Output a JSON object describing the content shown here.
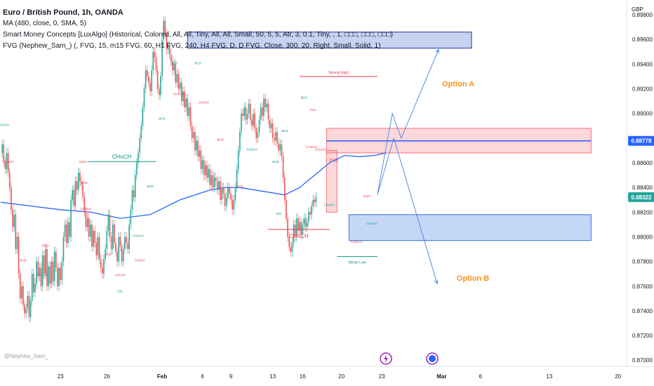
{
  "header": {
    "title": "Euro / British Pound, 1h, OANDA",
    "indicators": [
      "MA (480, close, 0, SMA, 5)",
      "Smart Money Concepts [LuxAlgo] (Historical, Colored, All, All, Tiny, All, All, Small, 50, 5, 5, Atr, 3, 0.1, Tiny, , 1, □□□, □□□, □□□)",
      "FVG (Nephew_Sam_) (, FVG, 15, m15 FVG, 60, H1 FVG, 240, H4 FVG, D, D FVG, Close, 300, 20, Right, Small, Solid, 1)"
    ]
  },
  "watermark": "@Nephew_Sam_",
  "chart_data": {
    "type": "line",
    "currency": "GBP",
    "ylim": [
      0.8695,
      0.8992
    ],
    "y_ticks": [
      0.87,
      0.872,
      0.874,
      0.876,
      0.878,
      0.88,
      0.882,
      0.884,
      0.886,
      0.888,
      0.89,
      0.892,
      0.894,
      0.896,
      0.898
    ],
    "y_tick_labels": [
      "0.87000",
      "0.87200",
      "0.87400",
      "0.87600",
      "0.87800",
      "0.88000",
      "0.88200",
      "0.88400",
      "0.88600",
      "0.88800",
      "0.89000",
      "0.89200",
      "0.89400",
      "0.89600",
      "0.89800"
    ],
    "x_tick_labels": [
      "23",
      "26",
      "Feb",
      "6",
      "9",
      "13",
      "16",
      "20",
      "23",
      "Mar",
      "6",
      "13",
      "20"
    ],
    "x_tick_index": [
      40,
      71,
      108,
      135,
      154,
      182,
      202,
      228,
      255,
      295,
      321,
      367,
      413
    ],
    "price_labels": [
      {
        "value": 0.88778,
        "label": "0.88778",
        "color": "#2962ff"
      },
      {
        "value": 0.88322,
        "label": "0.88322",
        "color": "#26a69a"
      }
    ],
    "series": [
      {
        "kind": "price",
        "description_key": "close",
        "x_start_index": 0,
        "values": [
          0.8868,
          0.8875,
          0.8861,
          0.8855,
          0.8868,
          0.8852,
          0.884,
          0.8822,
          0.8808,
          0.8818,
          0.879,
          0.88,
          0.877,
          0.875,
          0.876,
          0.8745,
          0.8738,
          0.8742,
          0.8752,
          0.8735,
          0.8748,
          0.877,
          0.8755,
          0.8762,
          0.878,
          0.8768,
          0.8775,
          0.876,
          0.8785,
          0.877,
          0.879,
          0.876,
          0.8776,
          0.8762,
          0.878,
          0.8764,
          0.8788,
          0.8775,
          0.876,
          0.8775,
          0.8765,
          0.878,
          0.88,
          0.881,
          0.8795,
          0.8812,
          0.88,
          0.883,
          0.8838,
          0.8825,
          0.8845,
          0.8838,
          0.8852,
          0.8845,
          0.8842,
          0.8832,
          0.882,
          0.8808,
          0.8815,
          0.88,
          0.881,
          0.8792,
          0.8805,
          0.8795,
          0.8785,
          0.88,
          0.8782,
          0.8775,
          0.877,
          0.8782,
          0.879,
          0.8805,
          0.8818,
          0.88,
          0.879,
          0.881,
          0.8795,
          0.8788,
          0.878,
          0.88,
          0.8792,
          0.878,
          0.879,
          0.88,
          0.8795,
          0.879,
          0.881,
          0.8822,
          0.8838,
          0.8832,
          0.885,
          0.886,
          0.8868,
          0.888,
          0.889,
          0.8905,
          0.892,
          0.8935,
          0.893,
          0.8925,
          0.8918,
          0.8935,
          0.895,
          0.8945,
          0.8935,
          0.892,
          0.8915,
          0.893,
          0.896,
          0.8975,
          0.8965,
          0.8952,
          0.8955,
          0.8948,
          0.8942,
          0.8935,
          0.894,
          0.8925,
          0.8932,
          0.892,
          0.8925,
          0.891,
          0.8918,
          0.8905,
          0.8912,
          0.8898,
          0.8905,
          0.889,
          0.888,
          0.8885,
          0.887,
          0.8878,
          0.8865,
          0.887,
          0.8855,
          0.8862,
          0.885,
          0.8858,
          0.8848,
          0.8855,
          0.8842,
          0.885,
          0.884,
          0.8848,
          0.8845,
          0.8838,
          0.8845,
          0.883,
          0.884,
          0.8835,
          0.8825,
          0.8832,
          0.884,
          0.8835,
          0.883,
          0.8822,
          0.883,
          0.884,
          0.8855,
          0.887,
          0.8885,
          0.89,
          0.8898,
          0.8905,
          0.8895,
          0.89,
          0.8908,
          0.8895,
          0.889,
          0.89,
          0.8888,
          0.888,
          0.8885,
          0.8895,
          0.8905,
          0.8898,
          0.8912,
          0.8905,
          0.8908,
          0.8895,
          0.8888,
          0.8892,
          0.888,
          0.8878,
          0.8885,
          0.8876,
          0.887,
          0.8875,
          0.8865,
          0.8848,
          0.883,
          0.8815,
          0.88,
          0.8792,
          0.8788,
          0.8795,
          0.881,
          0.88,
          0.8815,
          0.8805,
          0.8812,
          0.8802,
          0.881,
          0.8815,
          0.8808,
          0.8812,
          0.882,
          0.8818,
          0.8825,
          0.883,
          0.8828,
          0.8832
        ]
      },
      {
        "kind": "ma",
        "name": "MA (480, close, 0, SMA, 5)",
        "color": "#2962ff",
        "x_start_index": 0,
        "points_index": [
          0,
          20,
          40,
          60,
          80,
          100,
          120,
          140,
          150,
          160,
          170,
          180,
          190,
          200,
          210,
          220,
          230,
          240,
          250,
          258
        ],
        "points_value": [
          0.8828,
          0.8825,
          0.8822,
          0.882,
          0.8815,
          0.8818,
          0.883,
          0.8838,
          0.884,
          0.884,
          0.8838,
          0.8836,
          0.8834,
          0.884,
          0.885,
          0.886,
          0.8866,
          0.8865,
          0.8866,
          0.8868
        ]
      }
    ],
    "zones": [
      {
        "label": "",
        "x_from_index": 125,
        "x_to_index": 315,
        "y_from": 0.8953,
        "y_to": 0.8966,
        "fill": "#3d5ccc",
        "stroke": "#1e3a9f"
      },
      {
        "label": "",
        "x_from_index": 218,
        "x_to_index": 395,
        "y_from": 0.8868,
        "y_to": 0.8888,
        "fill": "#f4727a",
        "stroke": "#f4727a"
      },
      {
        "label": "",
        "x_from_index": 233,
        "x_to_index": 395,
        "y_from": 0.8797,
        "y_to": 0.8818,
        "fill": "#2f6fe4",
        "stroke": "#2f6fe4"
      },
      {
        "label": "FVG",
        "x_from_index": 218,
        "x_to_index": 225,
        "y_from": 0.882,
        "y_to": 0.887,
        "fill": "#f4727a",
        "stroke": "#f4727a"
      }
    ],
    "levels": [
      {
        "label": "CHoCH",
        "y": 0.8861,
        "x_from_index": 58,
        "x_to_index": 104,
        "color": "#089981"
      },
      {
        "label": "CHoCH",
        "y": 0.8806,
        "x_from_index": 179,
        "x_to_index": 220,
        "color": "#f23645"
      },
      {
        "label": "Strong High",
        "y": 0.893,
        "x_from_index": 200,
        "x_to_index": 252,
        "color": "#f23645"
      },
      {
        "label": "Weak Low",
        "y": 0.8784,
        "x_from_index": 225,
        "x_to_index": 252,
        "color": "#089981"
      },
      {
        "label": "",
        "y": 0.88778,
        "x_from_index": 218,
        "x_to_index": 395,
        "color": "#2962ff"
      }
    ],
    "projections": [
      {
        "label": "Option A",
        "color": "#4a7de8",
        "label_color": "#f7931a",
        "points_index": [
          252,
          262,
          268,
          293
        ],
        "points_value": [
          0.8834,
          0.89,
          0.888,
          0.8952
        ]
      },
      {
        "label": "Option B",
        "color": "#4a7de8",
        "label_color": "#f7931a",
        "points_index": [
          252,
          263,
          292
        ],
        "points_value": [
          0.8834,
          0.888,
          0.8762
        ]
      }
    ],
    "structure_labels": [
      {
        "text": "CHoCH",
        "i": 2,
        "v": 0.889,
        "color": "#089981"
      },
      {
        "text": "CHoCH",
        "i": 5,
        "v": 0.886,
        "color": "#f23645"
      },
      {
        "text": "BOS",
        "i": 15,
        "v": 0.878,
        "color": "#f23645"
      },
      {
        "text": "EQH",
        "i": 30,
        "v": 0.8792,
        "color": "#f23645"
      },
      {
        "text": "CHoCH",
        "i": 28,
        "v": 0.8768,
        "color": "#089981"
      },
      {
        "text": "EQH",
        "i": 55,
        "v": 0.886,
        "color": "#f23645"
      },
      {
        "text": "CHoCH",
        "i": 57,
        "v": 0.8822,
        "color": "#f23645"
      },
      {
        "text": "BOS",
        "i": 56,
        "v": 0.8843,
        "color": "#f23645"
      },
      {
        "text": "BOS",
        "i": 72,
        "v": 0.8785,
        "color": "#f23645"
      },
      {
        "text": "CHoCH",
        "i": 80,
        "v": 0.8768,
        "color": "#f23645"
      },
      {
        "text": "SSL",
        "i": 80,
        "v": 0.8755,
        "color": "#089981"
      },
      {
        "text": "CHoCH",
        "i": 92,
        "v": 0.88,
        "color": "#089981"
      },
      {
        "text": "CHoCH",
        "i": 93,
        "v": 0.878,
        "color": "#f23645"
      },
      {
        "text": "BOS",
        "i": 100,
        "v": 0.884,
        "color": "#089981"
      },
      {
        "text": "BOS",
        "i": 108,
        "v": 0.8895,
        "color": "#089981"
      },
      {
        "text": "BOS",
        "i": 116,
        "v": 0.894,
        "color": "#089981"
      },
      {
        "text": "CHoCH",
        "i": 119,
        "v": 0.8915,
        "color": "#f23645"
      },
      {
        "text": "BOS",
        "i": 132,
        "v": 0.894,
        "color": "#089981"
      },
      {
        "text": "CHoCH",
        "i": 136,
        "v": 0.8908,
        "color": "#f23645"
      },
      {
        "text": "BOS",
        "i": 147,
        "v": 0.8878,
        "color": "#f23645"
      },
      {
        "text": "CHoCH",
        "i": 168,
        "v": 0.887,
        "color": "#089981"
      },
      {
        "text": "BOS",
        "i": 160,
        "v": 0.884,
        "color": "#f23645"
      },
      {
        "text": "BOS",
        "i": 184,
        "v": 0.886,
        "color": "#089981"
      },
      {
        "text": "SSL",
        "i": 186,
        "v": 0.8818,
        "color": "#089981"
      },
      {
        "text": "BOS",
        "i": 190,
        "v": 0.8885,
        "color": "#089981"
      },
      {
        "text": "BOS",
        "i": 203,
        "v": 0.8912,
        "color": "#089981"
      },
      {
        "text": "FVG",
        "i": 209,
        "v": 0.8902,
        "color": "#f23645"
      },
      {
        "text": "CHoCH",
        "i": 208,
        "v": 0.8872,
        "color": "#f23645"
      },
      {
        "text": "CHoCH",
        "i": 214,
        "v": 0.887,
        "color": "#f23645"
      },
      {
        "text": "CHoCH",
        "i": 220,
        "v": 0.8825,
        "color": "#089981"
      },
      {
        "text": "EQH",
        "i": 245,
        "v": 0.8832,
        "color": "#f23645"
      },
      {
        "text": "CHoCH",
        "i": 248,
        "v": 0.881,
        "color": "#089981"
      },
      {
        "text": "CHoCH",
        "i": 238,
        "v": 0.8795,
        "color": "#f23645"
      }
    ]
  }
}
